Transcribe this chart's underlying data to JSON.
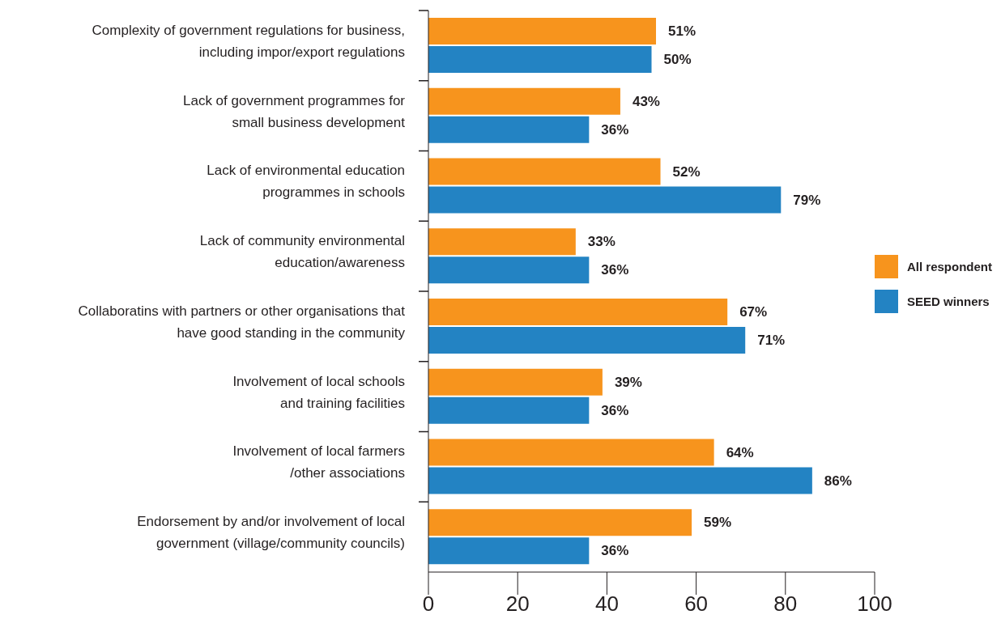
{
  "chart_data": {
    "type": "bar",
    "orientation": "horizontal",
    "categories": [
      "Complexity of government regulations for business,\nincluding impor/export regulations",
      "Lack of government programmes for\nsmall business development",
      "Lack of environmental education\nprogrammes in schools",
      "Lack of community environmental\neducation/awareness",
      "Collaboratins with partners or other organisations that\nhave good standing in the community",
      "Involvement of local schools\nand training facilities",
      "Involvement of local farmers\n/other associations",
      "Endorsement by and/or involvement of local\ngovernment (village/community councils)"
    ],
    "series": [
      {
        "name": "All respondent",
        "color": "#f7941d",
        "values": [
          51,
          43,
          52,
          33,
          67,
          39,
          64,
          59
        ],
        "value_labels": [
          "51%",
          "43%",
          "52%",
          "33%",
          "67%",
          "39%",
          "64%",
          "59%"
        ]
      },
      {
        "name": "SEED winners",
        "color": "#2383c3",
        "values": [
          50,
          36,
          79,
          36,
          71,
          36,
          86,
          36
        ],
        "value_labels": [
          "50%",
          "36%",
          "79%",
          "36%",
          "71%",
          "36%",
          "86%",
          "36%"
        ]
      }
    ],
    "xlim": [
      0,
      100
    ],
    "xticks": [
      0,
      20,
      40,
      60,
      80,
      100
    ],
    "legend": "right"
  }
}
